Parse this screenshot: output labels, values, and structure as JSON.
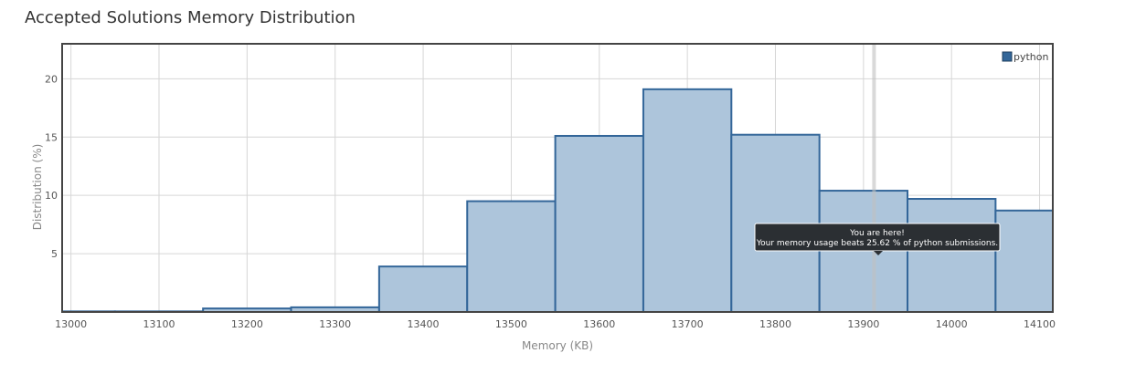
{
  "page": {
    "title": "Accepted Solutions Memory Distribution"
  },
  "chart_data": {
    "type": "bar",
    "bins": [
      {
        "start": 12950,
        "end": 13050,
        "value": 0.05
      },
      {
        "start": 13050,
        "end": 13150,
        "value": 0.05
      },
      {
        "start": 13150,
        "end": 13250,
        "value": 0.3
      },
      {
        "start": 13250,
        "end": 13350,
        "value": 0.4
      },
      {
        "start": 13350,
        "end": 13450,
        "value": 3.9
      },
      {
        "start": 13450,
        "end": 13550,
        "value": 9.5
      },
      {
        "start": 13550,
        "end": 13650,
        "value": 15.1
      },
      {
        "start": 13650,
        "end": 13750,
        "value": 19.1
      },
      {
        "start": 13750,
        "end": 13850,
        "value": 15.2
      },
      {
        "start": 13850,
        "end": 13950,
        "value": 10.4
      },
      {
        "start": 13950,
        "end": 14050,
        "value": 9.7
      },
      {
        "start": 14050,
        "end": 14150,
        "value": 8.7
      }
    ],
    "x_ticks": [
      13000,
      13100,
      13200,
      13300,
      13400,
      13500,
      13600,
      13700,
      13800,
      13900,
      14000,
      14100
    ],
    "y_ticks": [
      5,
      10,
      15,
      20
    ],
    "xlim": [
      12990,
      14115
    ],
    "ylim": [
      0,
      23
    ],
    "xlabel": "Memory (KB)",
    "ylabel": "Distribution (%)",
    "grid": true,
    "legend": {
      "placement": "top-right",
      "entries": [
        "python"
      ]
    },
    "series": [
      {
        "name": "python",
        "color": "#336699"
      }
    ],
    "marker": {
      "x": 13912
    },
    "annotation": {
      "line1": "You are here!",
      "line2": "Your memory usage beats 25.62 % of python submissions."
    },
    "colors": {
      "bar_fill": "#adc5db",
      "bar_stroke": "#336699",
      "tooltip_bg": "#2b2f33"
    }
  }
}
